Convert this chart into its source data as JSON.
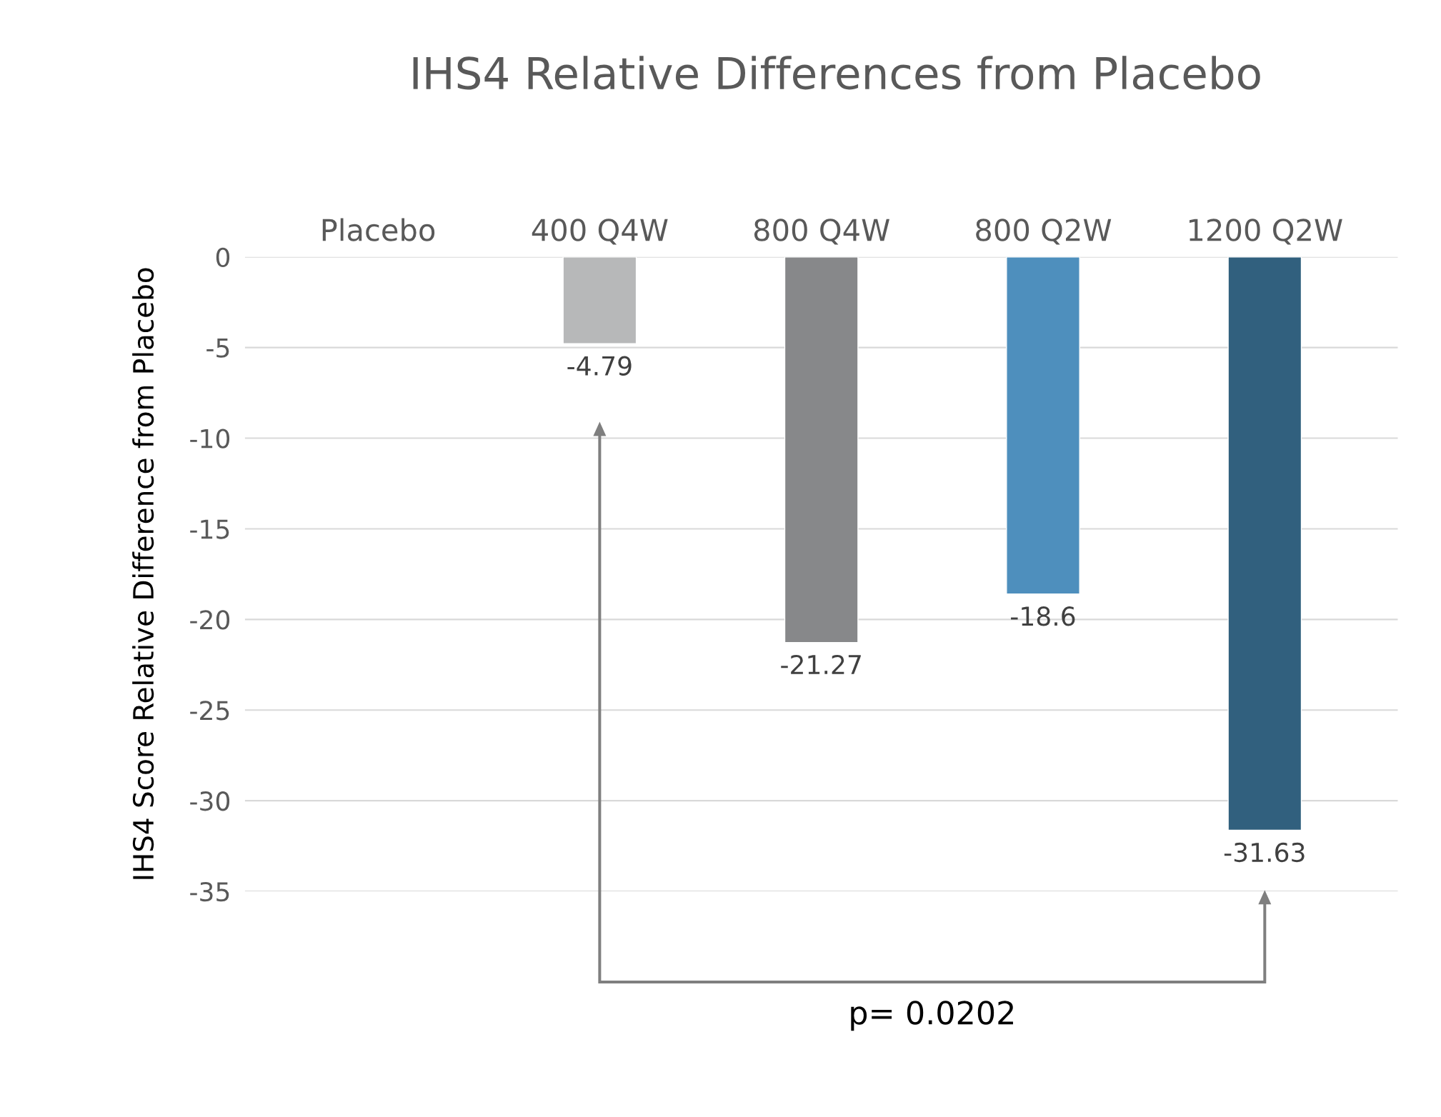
{
  "chart_data": {
    "type": "bar",
    "title": "IHS4 Relative Differences from Placebo",
    "ylabel": "IHS4 Score Relative Difference from Placebo",
    "categories": [
      "Placebo",
      "400 Q4W",
      "800 Q4W",
      "800 Q2W",
      "1200 Q2W"
    ],
    "values": [
      null,
      -4.79,
      -21.27,
      -18.6,
      -31.63
    ],
    "colors": [
      "#b7b8b9",
      "#b7b8b9",
      "#87888a",
      "#4e8fbd",
      "#31607e"
    ],
    "ylim": [
      -35,
      0
    ],
    "yticks": [
      0,
      -5,
      -10,
      -15,
      -20,
      -25,
      -30,
      -35
    ],
    "grid": "y",
    "data_labels": true,
    "annotations": [
      "p= 0.0202"
    ]
  }
}
